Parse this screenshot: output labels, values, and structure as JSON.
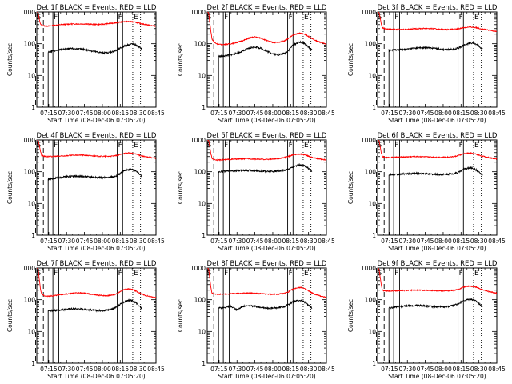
{
  "page": {
    "background": "#ffffff"
  },
  "colors": {
    "axis": "#000000",
    "events": "#000000",
    "lld": "#ff0000",
    "marker": "#000000"
  },
  "shared": {
    "ylabel": "Counts/sec",
    "xlabel": "Start Time (08-Dec-06 07:05:20)",
    "xticks": [
      {
        "t": 10,
        "label": "07:15"
      },
      {
        "t": 25,
        "label": "07:30"
      },
      {
        "t": 40,
        "label": "07:45"
      },
      {
        "t": 55,
        "label": "08:00"
      },
      {
        "t": 70,
        "label": "08:15"
      },
      {
        "t": 85,
        "label": "08:30"
      },
      {
        "t": 100,
        "label": "08:45"
      }
    ],
    "yticks": [
      {
        "v": 1,
        "label": "1"
      },
      {
        "v": 10,
        "label": "10"
      },
      {
        "v": 100,
        "label": "100"
      },
      {
        "v": 1000,
        "label": "1000"
      }
    ],
    "markers": [
      {
        "t": -1.0,
        "label": "S",
        "style": "dashed"
      },
      {
        "t": 5.5,
        "label": "",
        "style": "dashed"
      },
      {
        "t": 13.5,
        "label": "F",
        "style": "solid"
      },
      {
        "t": 18.5,
        "label": "",
        "style": "solid"
      },
      {
        "t": 67.5,
        "label": "F",
        "style": "solid"
      },
      {
        "t": 72.0,
        "label": "",
        "style": "solid"
      },
      {
        "t": 80.5,
        "label": "E",
        "style": "dotted"
      },
      {
        "t": 87.0,
        "label": "",
        "style": "dotted"
      }
    ]
  },
  "chart_data": [
    {
      "type": "line",
      "title": "Det 1f BLACK = Events, RED = LLD",
      "xlim": [
        0,
        100
      ],
      "ylim": [
        1,
        1000
      ],
      "yscale": "log",
      "x": [
        0,
        0.6,
        1.2,
        2,
        3,
        4,
        6,
        8,
        10,
        15,
        20,
        25,
        30,
        35,
        40,
        45,
        50,
        55,
        60,
        65,
        68,
        70,
        72,
        75,
        78,
        80,
        83,
        86,
        90,
        95,
        100
      ],
      "series": [
        {
          "name": "RED = LLD",
          "color": "#ff0000",
          "values": [
            1000,
            1000,
            900,
            600,
            420,
            380,
            370,
            360,
            360,
            380,
            400,
            410,
            420,
            420,
            420,
            410,
            405,
            410,
            430,
            450,
            470,
            480,
            490,
            500,
            500,
            490,
            470,
            440,
            410,
            380,
            360
          ]
        },
        {
          "name": "BLACK = Events",
          "color": "#000000",
          "start": 9.5,
          "end": 88,
          "values": [
            null,
            null,
            null,
            null,
            null,
            null,
            null,
            null,
            55,
            60,
            65,
            68,
            70,
            68,
            66,
            60,
            55,
            52,
            52,
            58,
            65,
            72,
            80,
            88,
            95,
            98,
            92,
            78,
            60,
            null,
            null
          ]
        }
      ]
    },
    {
      "type": "line",
      "title": "Det 2f BLACK = Events, RED = LLD",
      "xlim": [
        0,
        100
      ],
      "ylim": [
        1,
        1000
      ],
      "yscale": "log",
      "x": [
        0,
        0.6,
        1.2,
        2,
        3,
        4,
        6,
        8,
        10,
        15,
        20,
        25,
        30,
        35,
        40,
        45,
        50,
        55,
        60,
        65,
        68,
        70,
        72,
        75,
        78,
        80,
        83,
        86,
        90,
        95,
        100
      ],
      "series": [
        {
          "name": "RED = LLD",
          "color": "#ff0000",
          "values": [
            1000,
            1000,
            900,
            500,
            250,
            140,
            110,
            100,
            95,
            95,
            100,
            110,
            125,
            150,
            165,
            150,
            125,
            110,
            110,
            125,
            145,
            165,
            185,
            205,
            215,
            210,
            190,
            160,
            130,
            110,
            95
          ]
        },
        {
          "name": "BLACK = Events",
          "color": "#000000",
          "start": 9.5,
          "end": 88,
          "values": [
            null,
            null,
            null,
            null,
            null,
            null,
            null,
            null,
            40,
            42,
            45,
            50,
            58,
            72,
            80,
            72,
            58,
            48,
            45,
            50,
            60,
            75,
            90,
            105,
            112,
            108,
            92,
            72,
            52,
            null,
            null
          ]
        }
      ]
    },
    {
      "type": "line",
      "title": "Det 3f BLACK = Events, RED = LLD",
      "xlim": [
        0,
        100
      ],
      "ylim": [
        1,
        1000
      ],
      "yscale": "log",
      "x": [
        0,
        0.6,
        1.2,
        2,
        3,
        4,
        6,
        8,
        10,
        15,
        20,
        25,
        30,
        35,
        40,
        45,
        50,
        55,
        60,
        65,
        68,
        70,
        72,
        75,
        78,
        80,
        83,
        86,
        90,
        95,
        100
      ],
      "series": [
        {
          "name": "RED = LLD",
          "color": "#ff0000",
          "values": [
            1000,
            1000,
            950,
            700,
            420,
            320,
            300,
            290,
            285,
            280,
            280,
            285,
            295,
            300,
            305,
            300,
            290,
            280,
            280,
            285,
            295,
            310,
            320,
            330,
            335,
            330,
            320,
            300,
            280,
            260,
            245
          ]
        },
        {
          "name": "BLACK = Events",
          "color": "#000000",
          "start": 9.5,
          "end": 88,
          "values": [
            null,
            null,
            null,
            null,
            null,
            null,
            null,
            null,
            62,
            64,
            66,
            68,
            72,
            74,
            75,
            74,
            70,
            66,
            65,
            68,
            74,
            80,
            88,
            98,
            105,
            105,
            95,
            78,
            58,
            null,
            null
          ]
        }
      ]
    },
    {
      "type": "line",
      "title": "Det 4f BLACK = Events, RED = LLD",
      "xlim": [
        0,
        100
      ],
      "ylim": [
        1,
        1000
      ],
      "yscale": "log",
      "x": [
        0,
        0.6,
        1.2,
        2,
        3,
        4,
        6,
        8,
        10,
        15,
        20,
        25,
        30,
        35,
        40,
        45,
        50,
        55,
        60,
        65,
        68,
        70,
        72,
        75,
        78,
        80,
        83,
        86,
        90,
        95,
        100
      ],
      "series": [
        {
          "name": "RED = LLD",
          "color": "#ff0000",
          "values": [
            1000,
            1000,
            950,
            700,
            450,
            330,
            310,
            300,
            300,
            305,
            310,
            320,
            330,
            335,
            330,
            320,
            310,
            305,
            305,
            315,
            330,
            350,
            370,
            385,
            390,
            380,
            360,
            330,
            300,
            280,
            265
          ]
        },
        {
          "name": "BLACK = Events",
          "color": "#000000",
          "start": 9.5,
          "end": 88,
          "values": [
            null,
            null,
            null,
            null,
            null,
            null,
            null,
            null,
            58,
            62,
            66,
            70,
            72,
            72,
            70,
            68,
            66,
            65,
            66,
            70,
            78,
            88,
            100,
            112,
            120,
            118,
            105,
            85,
            62,
            null,
            null
          ]
        }
      ]
    },
    {
      "type": "line",
      "title": "Det 5f BLACK = Events, RED = LLD",
      "xlim": [
        0,
        100
      ],
      "ylim": [
        1,
        1000
      ],
      "yscale": "log",
      "x": [
        0,
        0.6,
        1.2,
        2,
        3,
        4,
        6,
        8,
        10,
        15,
        20,
        25,
        30,
        35,
        40,
        45,
        50,
        55,
        60,
        65,
        68,
        70,
        72,
        75,
        78,
        80,
        83,
        86,
        90,
        95,
        100
      ],
      "series": [
        {
          "name": "RED = LLD",
          "color": "#ff0000",
          "values": [
            1000,
            1000,
            950,
            650,
            380,
            260,
            240,
            235,
            235,
            240,
            245,
            250,
            255,
            255,
            250,
            245,
            245,
            250,
            260,
            280,
            300,
            320,
            340,
            355,
            360,
            350,
            330,
            300,
            270,
            250,
            235
          ]
        },
        {
          "name": "BLACK = Events",
          "color": "#000000",
          "start": 9.5,
          "end": 88,
          "values": [
            null,
            null,
            null,
            null,
            null,
            null,
            null,
            null,
            100,
            102,
            105,
            108,
            110,
            110,
            108,
            105,
            102,
            102,
            105,
            112,
            122,
            132,
            142,
            155,
            162,
            160,
            145,
            120,
            90,
            null,
            null
          ]
        }
      ]
    },
    {
      "type": "line",
      "title": "Det 6f BLACK = Events, RED = LLD",
      "xlim": [
        0,
        100
      ],
      "ylim": [
        1,
        1000
      ],
      "yscale": "log",
      "x": [
        0,
        0.6,
        1.2,
        2,
        3,
        4,
        6,
        8,
        10,
        15,
        20,
        25,
        30,
        35,
        40,
        45,
        50,
        55,
        60,
        65,
        68,
        70,
        72,
        75,
        78,
        80,
        83,
        86,
        90,
        95,
        100
      ],
      "series": [
        {
          "name": "RED = LLD",
          "color": "#ff0000",
          "values": [
            1000,
            1000,
            950,
            650,
            400,
            300,
            285,
            280,
            280,
            285,
            290,
            295,
            300,
            300,
            295,
            290,
            285,
            285,
            290,
            305,
            325,
            345,
            365,
            380,
            385,
            375,
            355,
            325,
            295,
            270,
            255
          ]
        },
        {
          "name": "BLACK = Events",
          "color": "#000000",
          "start": 9.5,
          "end": 88,
          "values": [
            null,
            null,
            null,
            null,
            null,
            null,
            null,
            null,
            80,
            82,
            84,
            86,
            88,
            88,
            86,
            84,
            82,
            82,
            84,
            90,
            98,
            108,
            118,
            128,
            132,
            128,
            112,
            90,
            65,
            null,
            null
          ]
        }
      ]
    },
    {
      "type": "line",
      "title": "Det 7f BLACK = Events, RED = LLD",
      "xlim": [
        0,
        100
      ],
      "ylim": [
        1,
        1000
      ],
      "yscale": "log",
      "x": [
        0,
        0.6,
        1.2,
        2,
        3,
        4,
        6,
        8,
        10,
        15,
        20,
        25,
        30,
        35,
        40,
        45,
        50,
        55,
        60,
        65,
        68,
        70,
        72,
        75,
        78,
        80,
        83,
        86,
        90,
        95,
        100
      ],
      "series": [
        {
          "name": "RED = LLD",
          "color": "#ff0000",
          "values": [
            1000,
            1000,
            850,
            450,
            220,
            150,
            135,
            130,
            128,
            135,
            145,
            150,
            160,
            165,
            160,
            150,
            140,
            135,
            135,
            145,
            160,
            180,
            200,
            215,
            220,
            210,
            190,
            165,
            140,
            125,
            115
          ]
        },
        {
          "name": "BLACK = Events",
          "color": "#000000",
          "start": 9.5,
          "end": 88,
          "values": [
            null,
            null,
            null,
            null,
            null,
            null,
            null,
            null,
            45,
            46,
            48,
            50,
            52,
            52,
            50,
            48,
            46,
            46,
            48,
            54,
            62,
            72,
            82,
            92,
            96,
            92,
            80,
            62,
            45,
            null,
            null
          ]
        }
      ]
    },
    {
      "type": "line",
      "title": "Det 8f BLACK = Events, RED = LLD",
      "xlim": [
        0,
        100
      ],
      "ylim": [
        1,
        1000
      ],
      "yscale": "log",
      "x": [
        0,
        0.6,
        1.2,
        2,
        3,
        4,
        6,
        8,
        10,
        15,
        20,
        25,
        30,
        35,
        40,
        45,
        50,
        55,
        60,
        65,
        68,
        70,
        72,
        75,
        78,
        80,
        83,
        86,
        90,
        95,
        100
      ],
      "series": [
        {
          "name": "RED = LLD",
          "color": "#ff0000",
          "values": [
            1000,
            1000,
            900,
            500,
            250,
            160,
            150,
            148,
            148,
            150,
            155,
            158,
            160,
            162,
            160,
            155,
            150,
            148,
            150,
            160,
            175,
            195,
            215,
            235,
            245,
            235,
            210,
            180,
            150,
            130,
            118
          ]
        },
        {
          "name": "BLACK = Events",
          "color": "#000000",
          "start": 9.5,
          "end": 88,
          "values": [
            null,
            null,
            null,
            null,
            null,
            null,
            null,
            null,
            55,
            58,
            62,
            48,
            62,
            64,
            62,
            58,
            55,
            54,
            56,
            62,
            70,
            78,
            86,
            92,
            95,
            90,
            78,
            62,
            46,
            null,
            null
          ]
        }
      ]
    },
    {
      "type": "line",
      "title": "Det 9f BLACK = Events, RED = LLD",
      "xlim": [
        0,
        100
      ],
      "ylim": [
        1,
        1000
      ],
      "yscale": "log",
      "x": [
        0,
        0.6,
        1.2,
        2,
        3,
        4,
        6,
        8,
        10,
        15,
        20,
        25,
        30,
        35,
        40,
        45,
        50,
        55,
        60,
        65,
        68,
        70,
        72,
        75,
        78,
        80,
        83,
        86,
        90,
        95,
        100
      ],
      "series": [
        {
          "name": "RED = LLD",
          "color": "#ff0000",
          "values": [
            1000,
            1000,
            900,
            550,
            300,
            200,
            190,
            188,
            188,
            190,
            195,
            198,
            200,
            200,
            198,
            195,
            192,
            190,
            192,
            200,
            215,
            232,
            250,
            265,
            270,
            262,
            245,
            220,
            195,
            175,
            160
          ]
        },
        {
          "name": "BLACK = Events",
          "color": "#000000",
          "start": 9.5,
          "end": 88,
          "values": [
            null,
            null,
            null,
            null,
            null,
            null,
            null,
            null,
            55,
            58,
            62,
            64,
            66,
            66,
            64,
            62,
            60,
            60,
            62,
            68,
            76,
            84,
            92,
            100,
            104,
            100,
            88,
            70,
            52,
            null,
            null
          ]
        }
      ]
    }
  ]
}
